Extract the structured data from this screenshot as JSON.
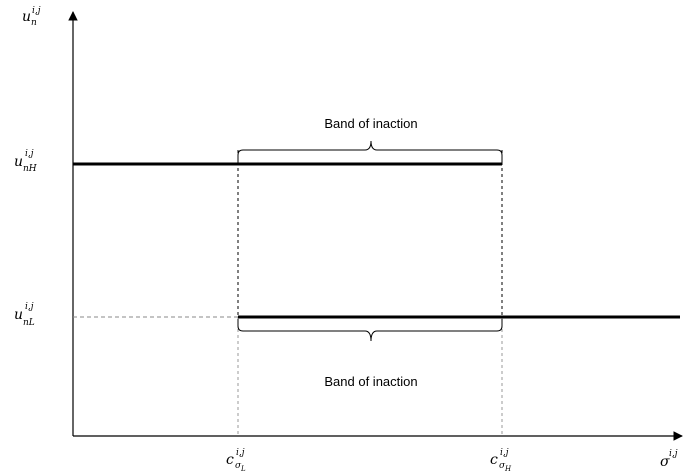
{
  "axes": {
    "y_axis_label": {
      "base": "u",
      "sub": "n",
      "sup": "i,j"
    },
    "x_axis_label": {
      "base": "σ",
      "sup": "i,j"
    }
  },
  "levels": {
    "high": {
      "base": "u",
      "sub": "nH",
      "sup": "i,j"
    },
    "low": {
      "base": "u",
      "sub": "nL",
      "sup": "i,j"
    }
  },
  "thresholds": {
    "low": {
      "base": "c",
      "sub": "σ",
      "subsub": "L",
      "sup": "i,j"
    },
    "high": {
      "base": "c",
      "sub": "σ",
      "subsub": "H",
      "sup": "i,j"
    }
  },
  "annotations": {
    "band_top": "Band of inaction",
    "band_bottom": "Band of inaction"
  }
}
